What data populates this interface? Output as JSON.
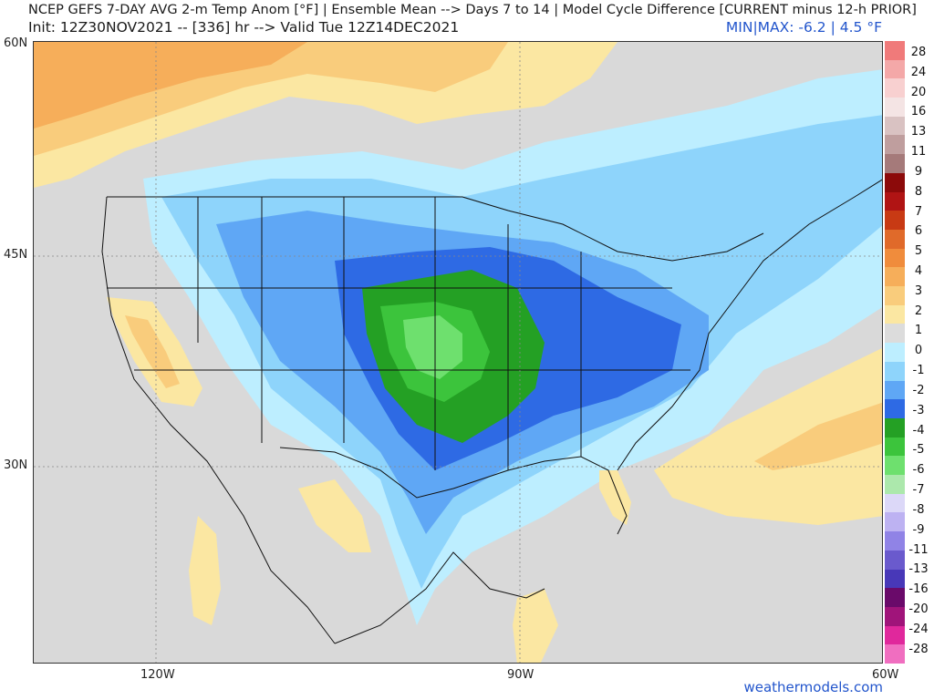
{
  "header": {
    "line1": "NCEP GEFS 7-DAY AVG 2-m Temp Anom [°F] | Ensemble Mean --> Days 7 to 14 | Model Cycle Difference [CURRENT minus 12-h PRIOR]",
    "line2": "Init: 12Z30NOV2021 -- [336] hr --> Valid Tue 12Z14DEC2021",
    "minmax": "MIN|MAX: -6.2 | 4.5 °F"
  },
  "axes": {
    "lat_labels": [
      "60N",
      "45N",
      "30N"
    ],
    "lon_labels": [
      "120W",
      "90W",
      "60W"
    ]
  },
  "colorbar": {
    "labels": [
      "28",
      "24",
      "20",
      "16",
      "13",
      "11",
      "9",
      "8",
      "7",
      "6",
      "5",
      "4",
      "3",
      "2",
      "1",
      "0",
      "-1",
      "-2",
      "-3",
      "-4",
      "-5",
      "-6",
      "-7",
      "-8",
      "-9",
      "-11",
      "-13",
      "-16",
      "-20",
      "-24",
      "-28"
    ],
    "colors": [
      "#f07a7a",
      "#f4a8a8",
      "#f8d0d0",
      "#f4e4e4",
      "#d9c2c2",
      "#bf9e9e",
      "#a57a7a",
      "#8c0a0a",
      "#b01414",
      "#c83a14",
      "#e06a2a",
      "#f08c3c",
      "#f6ae5a",
      "#f9cc7c",
      "#fbe7a2",
      "#dcdcdc",
      "#bdeeff",
      "#8ed4fb",
      "#5fa7f5",
      "#2e6ae4",
      "#24a024",
      "#3cc43c",
      "#6ee06e",
      "#ace8ac",
      "#dcd8f8",
      "#bdb2f2",
      "#9083e6",
      "#6a5acd",
      "#4838b8",
      "#6a0a6a",
      "#a0147a",
      "#e0289c",
      "#f06ec0"
    ]
  },
  "credit": "weathermodels.com",
  "legend_scale": {
    "unit": "°F",
    "min": -6.2,
    "max": 4.5
  }
}
